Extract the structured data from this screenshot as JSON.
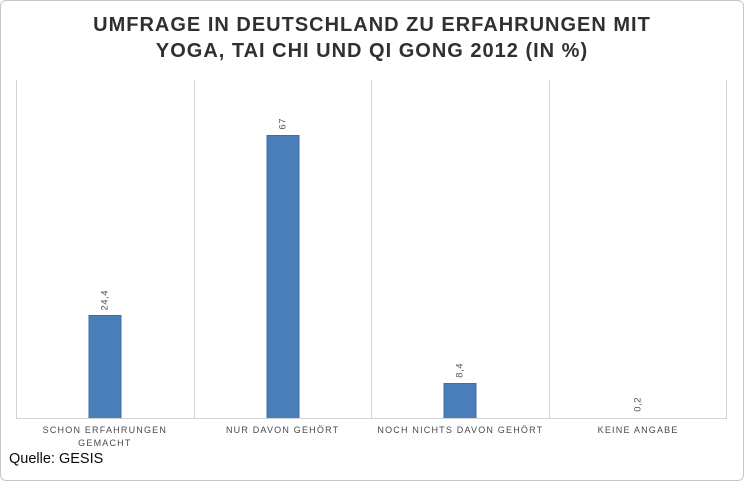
{
  "title": {
    "line1": "UMFRAGE IN DEUTSCHLAND ZU ERFAHRUNGEN MIT",
    "line2": "YOGA, TAI CHI UND QI GONG 2012 (IN %)"
  },
  "source": "Quelle: GESIS",
  "colors": {
    "bar_fill": "#4a7ebb",
    "bar_border": "#3e6da5",
    "grid_line": "#d3d3d3",
    "title_text": "#303030",
    "label_text": "#545454"
  },
  "chart_data": {
    "type": "bar",
    "title": "UMFRAGE IN DEUTSCHLAND ZU ERFAHRUNGEN MIT YOGA, TAI CHI UND QI GONG 2012 (IN %)",
    "categories": [
      "SCHON ERFAHRUNGEN\nGEMACHT",
      "NUR DAVON GEHÖRT",
      "NOCH NICHTS DAVON GEHÖRT",
      "KEINE ANGABE"
    ],
    "values": [
      24.4,
      67,
      8.4,
      0.2
    ],
    "value_labels": [
      "24,4",
      "67",
      "8,4",
      "0,2"
    ],
    "xlabel": "",
    "ylabel": "",
    "ylim": [
      0,
      80
    ],
    "grid": "vertical category separators only",
    "legend": "none",
    "value_label_rotation": "90deg, reading bottom to top",
    "source": "Quelle: GESIS"
  }
}
